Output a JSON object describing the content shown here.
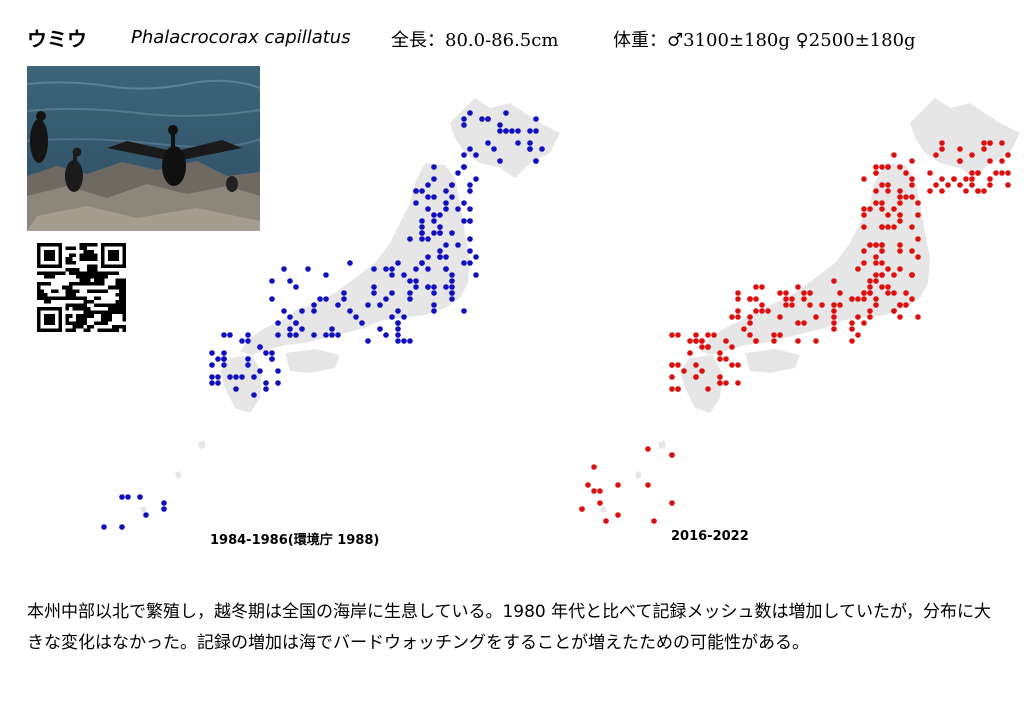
{
  "header": {
    "name_ja": "ウミウ",
    "scientific_name": "Phalacrocorax capillatus",
    "length": "全長：80.0-86.5cm",
    "weight": "体重：♂3100±180g ♀2500±180g"
  },
  "photo": {
    "subject": "cormorant-photo"
  },
  "qr": {
    "kind": "qr-code"
  },
  "colors": {
    "past_dots": "#1010c0",
    "recent_dots": "#dd1010",
    "land": "#e6e6e6"
  },
  "maps": {
    "past": {
      "period": "1984-1986(環境庁 1988)",
      "color_key": "past_dots",
      "dot_count": 214
    },
    "recent": {
      "period": "2016-2022",
      "color_key": "recent_dots",
      "dot_count": 246
    }
  },
  "description": "本州中部以北で繁殖し，越冬期は全国の海岸に生息している。1980 年代と比べて記録メッシュ数は増加していたが，分布に大きな変化はなかった。記録の増加は海でバードウォッチングをすることが増えたための可能性がある。"
}
